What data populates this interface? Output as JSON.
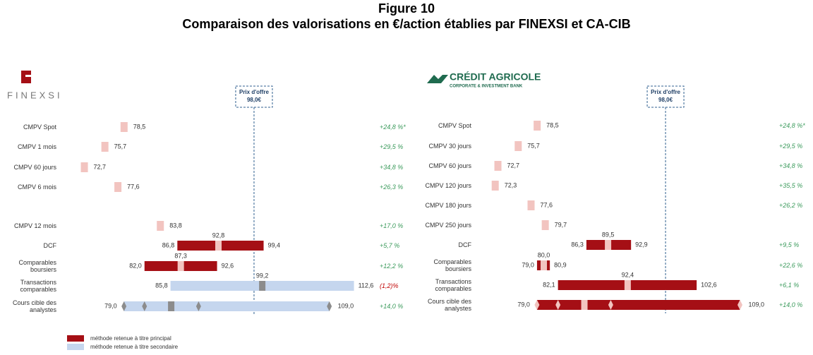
{
  "header": {
    "figure": "Figure 10",
    "title": "Comparaison des valorisations en €/action établies par FINEXSI et CA-CIB"
  },
  "legend": [
    {
      "label": "méthode retenue à titre principal",
      "style": "primary"
    },
    {
      "label": "méthode retenue à titre secondaire",
      "style": "secondary"
    }
  ],
  "colors": {
    "point": "#f2c4c0",
    "primary": "#a50f15",
    "secondary": "#c5d6ee",
    "mid_primary": "#f2c4c0",
    "mid_secondary": "#8c8c8c",
    "premium": "#3a9a5b",
    "negative": "#c00000",
    "offer": "#2f5f8f"
  },
  "chart_data": [
    {
      "type": "range",
      "logo": "FINEXSI",
      "xlim": [
        71.2,
        114.5
      ],
      "marker_color": "#8c8c8c",
      "offer": {
        "title": "Prix d'offre",
        "value": 98,
        "label": "98,0€"
      },
      "categories": [
        "CMPV Spot",
        "CMPV 1 mois",
        "CMPV 60 jours",
        "CMPV 6 mois",
        null,
        "CMPV 12 mois",
        "DCF",
        "Comparables boursiers",
        "Transactions comparables",
        "Cours cible des analystes"
      ],
      "styles": [
        "point",
        "point",
        "point",
        "point",
        null,
        "point",
        "primary",
        "primary",
        "secondary",
        "secondary"
      ],
      "low": [
        78.5,
        75.7,
        72.7,
        77.6,
        null,
        83.8,
        86.8,
        82.0,
        85.8,
        79.0
      ],
      "low_labels": [
        "78,5",
        "75,7",
        "72,7",
        "77,6",
        null,
        "83,8",
        "86,8",
        "82,0",
        "85,8",
        "79,0"
      ],
      "high": [
        null,
        null,
        null,
        null,
        null,
        null,
        99.4,
        92.6,
        112.6,
        109.0
      ],
      "high_labels": [
        null,
        null,
        null,
        null,
        null,
        null,
        "99,4",
        "92,6",
        "112,6",
        "109,0"
      ],
      "mid": [
        null,
        null,
        null,
        null,
        null,
        null,
        92.8,
        87.3,
        99.2,
        85.9
      ],
      "mid_labels": [
        null,
        null,
        null,
        null,
        null,
        null,
        "92,8",
        "87,3",
        "99,2",
        null
      ],
      "points": [
        null,
        null,
        null,
        null,
        null,
        null,
        null,
        null,
        null,
        [
          79.0,
          82.0,
          89.9,
          109.0
        ]
      ],
      "premiums": [
        24.8,
        29.5,
        34.8,
        26.3,
        null,
        17.0,
        5.7,
        12.2,
        -1.2,
        14.0
      ],
      "premium_labels": [
        "+24,8 %*",
        "+29,5 %",
        "+34,8 %",
        "+26,3 %",
        null,
        "+17,0 %",
        "+5,7 %",
        "+12,2 %",
        "(1,2)%",
        "+14,0 %"
      ]
    },
    {
      "type": "range",
      "logo": "CRÉDIT AGRICOLE",
      "logo_subtitle": "CORPORATE & INVESTMENT BANK",
      "xlim": [
        71.6,
        110.2
      ],
      "marker_color": "#f2c4c0",
      "offer": {
        "title": "Prix d'offre",
        "value": 98,
        "label": "98,0€"
      },
      "categories": [
        "CMPV Spot",
        "CMPV 30 jours",
        "CMPV 60 jours",
        "CMPV 120 jours",
        "CMPV 180 jours",
        "CMPV 250 jours",
        "DCF",
        "Comparables boursiers",
        "Transactions comparables",
        "Cours cible des analystes"
      ],
      "styles": [
        "point",
        "point",
        "point",
        "point",
        "point",
        "point",
        "primary",
        "primary",
        "primary",
        "primary"
      ],
      "low": [
        78.5,
        75.7,
        72.7,
        72.3,
        77.6,
        79.7,
        86.3,
        79.0,
        82.1,
        79.0
      ],
      "low_labels": [
        "78,5",
        "75,7",
        "72,7",
        "72,3",
        "77,6",
        "79,7",
        "86,3",
        "79,0",
        "82,1",
        "79,0"
      ],
      "high": [
        null,
        null,
        null,
        null,
        null,
        null,
        92.9,
        80.9,
        102.6,
        109.0
      ],
      "high_labels": [
        null,
        null,
        null,
        null,
        null,
        null,
        "92,9",
        "80,9",
        "102,6",
        "109,0"
      ],
      "mid": [
        null,
        null,
        null,
        null,
        null,
        null,
        89.5,
        80.0,
        92.4,
        86.0
      ],
      "mid_labels": [
        null,
        null,
        null,
        null,
        null,
        null,
        "89,5",
        "80,0",
        "92,4",
        null
      ],
      "points": [
        null,
        null,
        null,
        null,
        null,
        null,
        null,
        null,
        null,
        [
          79.0,
          82.1,
          89.9,
          109.0
        ]
      ],
      "premiums": [
        24.8,
        29.5,
        34.8,
        35.5,
        26.2,
        null,
        9.5,
        22.6,
        6.1,
        14.0
      ],
      "premium_labels": [
        "+24,8 %*",
        "+29,5 %",
        "+34,8 %",
        "+35,5 %",
        "+26,2 %",
        null,
        "+9,5 %",
        "+22,6 %",
        "+6,1 %",
        "+14,0 %"
      ]
    }
  ]
}
